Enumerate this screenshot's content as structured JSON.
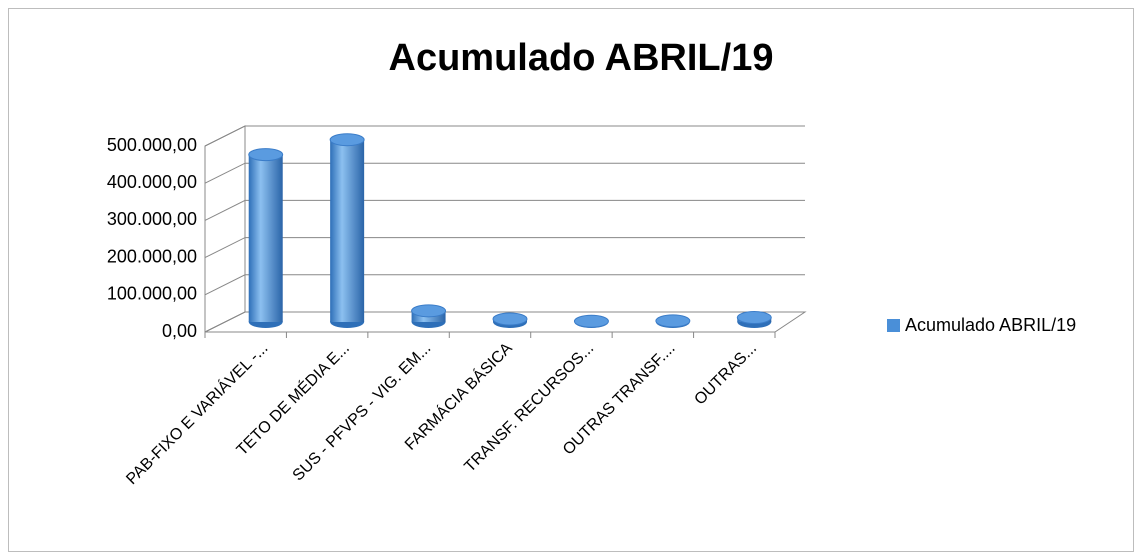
{
  "chart_data": {
    "type": "bar",
    "title": "Acumulado ABRIL/19",
    "categories": [
      "PAB-FIXO E VARIÁVEL -...",
      "TETO DE MÉDIA E...",
      "SUS - PFVPS - VIG. EM...",
      "FARMÁCIA BÁSICA",
      "TRANSF. RECURSOS...",
      "OUTRAS TRANSF....",
      "OUTRAS..."
    ],
    "series": [
      {
        "name": "Acumulado ABRIL/19",
        "color": "#4a8fd8",
        "values": [
          450000,
          490000,
          30000,
          8000,
          2000,
          3000,
          12000
        ]
      }
    ],
    "ylim": [
      0,
      500000
    ],
    "yticks": [
      {
        "value": 0,
        "label": "0,00"
      },
      {
        "value": 100000,
        "label": "100.000,00"
      },
      {
        "value": 200000,
        "label": "200.000,00"
      },
      {
        "value": 300000,
        "label": "300.000,00"
      },
      {
        "value": 400000,
        "label": "400.000,00"
      },
      {
        "value": 500000,
        "label": "500.000,00"
      }
    ],
    "grid": true,
    "legend": "right"
  }
}
